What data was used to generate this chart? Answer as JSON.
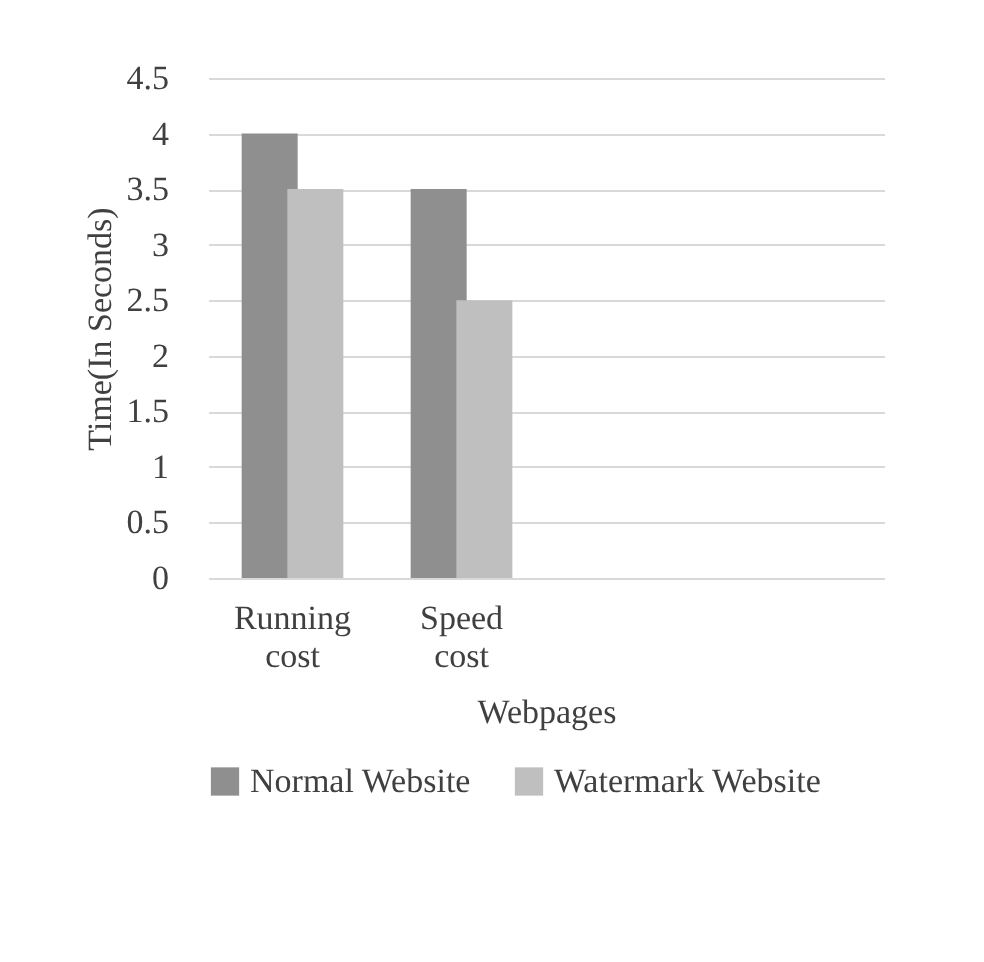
{
  "chart_data": {
    "type": "bar",
    "xlabel": "Webpages",
    "ylabel": "Time(In Seconds)",
    "categories": [
      "Running cost",
      "Speed cost",
      null,
      null
    ],
    "series": [
      {
        "name": "Normal Website",
        "color": "#8f8f8f",
        "values": [
          4,
          3.5,
          null,
          null
        ]
      },
      {
        "name": "Watermark Website",
        "color": "#bfbfbf",
        "values": [
          3.5,
          2.5,
          null,
          null
        ]
      }
    ],
    "ylim": [
      0,
      4.5
    ],
    "yticks": [
      0,
      0.5,
      1,
      1.5,
      2,
      2.5,
      3,
      3.5,
      4,
      4.5
    ],
    "grid": "y",
    "legend": "bottom"
  }
}
